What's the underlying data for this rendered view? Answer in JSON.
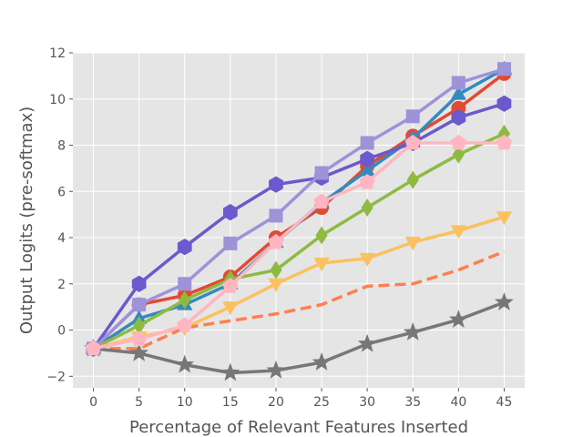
{
  "chart_data": {
    "type": "line",
    "title": "",
    "xlabel": "Percentage of Relevant Features Inserted",
    "ylabel": "Output Logits (pre-softmax)",
    "x": [
      0,
      5,
      10,
      15,
      20,
      25,
      30,
      35,
      40,
      45
    ],
    "xticks": [
      0,
      5,
      10,
      15,
      20,
      25,
      30,
      35,
      40,
      45
    ],
    "yticks": [
      -2,
      0,
      2,
      4,
      6,
      8,
      10,
      12
    ],
    "xlim": [
      -2.25,
      47.25
    ],
    "ylim": [
      -2.5,
      12
    ],
    "grid": true,
    "background": "#e5e5e5",
    "series": [
      {
        "color": "#e24a33",
        "marker": "circle",
        "linestyle": "solid",
        "values": [
          -0.8,
          1.1,
          1.5,
          2.3,
          4.0,
          5.3,
          7.1,
          8.4,
          9.6,
          11.1
        ]
      },
      {
        "color": "#348abd",
        "marker": "triangle-up",
        "linestyle": "solid",
        "values": [
          -0.8,
          0.5,
          1.1,
          2.0,
          3.8,
          5.5,
          6.9,
          8.3,
          10.2,
          11.3
        ]
      },
      {
        "color": "#8eba42",
        "marker": "diamond",
        "linestyle": "solid",
        "values": [
          -0.8,
          0.2,
          1.3,
          2.2,
          2.6,
          4.1,
          5.3,
          6.5,
          7.6,
          8.5
        ]
      },
      {
        "color": "#fbc15e",
        "marker": "triangle-down",
        "linestyle": "solid",
        "values": [
          -0.8,
          -0.3,
          0.1,
          1.0,
          2.0,
          2.9,
          3.1,
          3.8,
          4.3,
          4.9
        ]
      },
      {
        "color": "#ff7f50",
        "marker": "none",
        "linestyle": "dashed",
        "values": [
          -0.8,
          -0.8,
          0.1,
          0.4,
          0.7,
          1.1,
          1.9,
          2.0,
          2.6,
          3.4
        ]
      },
      {
        "color": "#777777",
        "marker": "star",
        "linestyle": "solid",
        "values": [
          -0.8,
          -1.0,
          -1.5,
          -1.85,
          -1.75,
          -1.4,
          -0.6,
          -0.1,
          0.45,
          1.2
        ]
      },
      {
        "color": "#6a5acd",
        "marker": "hexagon",
        "linestyle": "solid",
        "values": [
          -0.8,
          2.0,
          3.6,
          5.1,
          6.3,
          6.6,
          7.4,
          8.1,
          9.2,
          9.8
        ]
      },
      {
        "color": "#9d93d9",
        "marker": "square",
        "linestyle": "solid",
        "values": [
          -0.8,
          1.1,
          2.0,
          3.75,
          4.95,
          6.8,
          8.1,
          9.25,
          10.7,
          11.3
        ]
      },
      {
        "color": "#ffb6c1",
        "marker": "pentagon",
        "linestyle": "solid",
        "values": [
          -0.8,
          -0.4,
          0.2,
          1.9,
          3.8,
          5.55,
          6.4,
          8.1,
          8.1,
          8.1
        ]
      }
    ]
  }
}
